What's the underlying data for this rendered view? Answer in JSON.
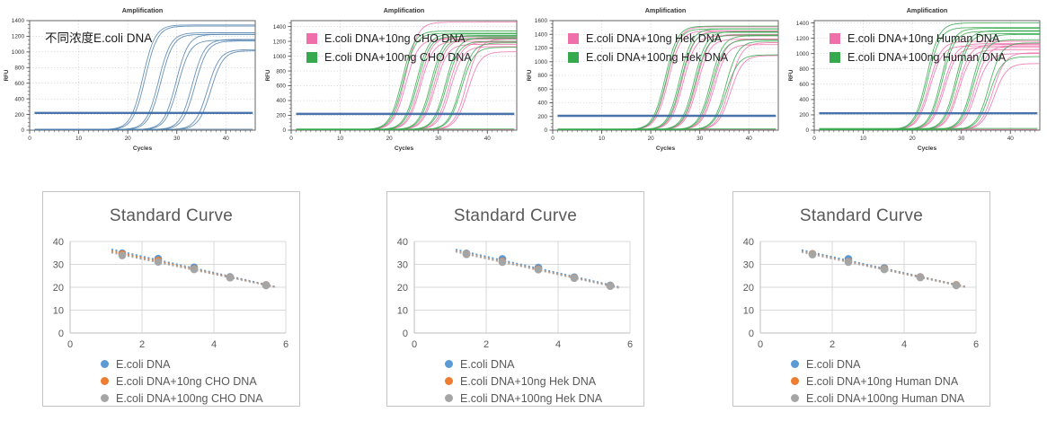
{
  "colors": {
    "amp_blue": "#4d7fae",
    "threshold_blue": "#3a69a4",
    "pink": "#ee6fa9",
    "green": "#36a84e",
    "amp_text": "#333333",
    "amp_grid": "#b9b9b9",
    "amp_axis": "#555555",
    "excel_blue": "#5B9BD5",
    "excel_orange": "#ED7D31",
    "excel_gray": "#A5A5A5",
    "std_text": "#595959",
    "std_grid": "#d9d9d9",
    "std_axis": "#bfbfbf"
  },
  "chart_data": [
    {
      "id": "amp1",
      "kind": "amplification",
      "type": "line",
      "title": "Amplification",
      "xlabel": "Cycles",
      "ylabel": "RFU",
      "xlim": [
        0,
        46
      ],
      "ylim": [
        0,
        1400
      ],
      "x_ticks": [
        0,
        10,
        20,
        30,
        40
      ],
      "y_ticks": [
        0,
        200,
        400,
        600,
        800,
        1000,
        1200,
        1400
      ],
      "threshold": 220,
      "annotation": "不同浓度E.coli DNA",
      "legend": [],
      "series": [
        {
          "c": "blue",
          "ct": 21.0,
          "p": 1345
        },
        {
          "c": "blue",
          "ct": 21.5,
          "p": 1330
        },
        {
          "c": "blue",
          "ct": 24.3,
          "p": 1245
        },
        {
          "c": "blue",
          "ct": 24.8,
          "p": 1225
        },
        {
          "c": "blue",
          "ct": 27.9,
          "p": 1225
        },
        {
          "c": "blue",
          "ct": 28.4,
          "p": 1150
        },
        {
          "c": "blue",
          "ct": 31.3,
          "p": 1160
        },
        {
          "c": "blue",
          "ct": 31.9,
          "p": 1140
        },
        {
          "c": "blue",
          "ct": 34.6,
          "p": 1030
        },
        {
          "c": "blue",
          "ct": 35.3,
          "p": 1015
        },
        {
          "c": "blue",
          "flat": 12
        }
      ]
    },
    {
      "id": "amp2",
      "kind": "amplification",
      "type": "line",
      "title": "Amplification",
      "xlabel": "Cycles",
      "ylabel": "RFU",
      "xlim": [
        0,
        46
      ],
      "ylim": [
        0,
        1480
      ],
      "x_ticks": [
        0,
        10,
        20,
        30,
        40
      ],
      "y_ticks": [
        0,
        200,
        400,
        600,
        800,
        1000,
        1200,
        1400
      ],
      "threshold": 220,
      "annotation": "",
      "legend": [
        {
          "label": "E.coli DNA+10ng CHO DNA",
          "color": "pink"
        },
        {
          "label": "E.coli DNA+100ng CHO DNA",
          "color": "green"
        }
      ],
      "series": [
        {
          "c": "pink",
          "ct": 21.1,
          "p": 1460
        },
        {
          "c": "pink",
          "ct": 21.4,
          "p": 1230
        },
        {
          "c": "pink",
          "ct": 24.2,
          "p": 1260
        },
        {
          "c": "pink",
          "ct": 24.5,
          "p": 1200
        },
        {
          "c": "pink",
          "ct": 27.2,
          "p": 1230
        },
        {
          "c": "pink",
          "ct": 27.5,
          "p": 1160
        },
        {
          "c": "pink",
          "ct": 30.3,
          "p": 1190
        },
        {
          "c": "pink",
          "ct": 30.7,
          "p": 1130
        },
        {
          "c": "pink",
          "ct": 33.8,
          "p": 1230
        },
        {
          "c": "pink",
          "ct": 34.3,
          "p": 1060
        },
        {
          "c": "pink",
          "flat": 10
        },
        {
          "c": "green",
          "ct": 20.5,
          "p": 1340
        },
        {
          "c": "green",
          "ct": 20.8,
          "p": 1310
        },
        {
          "c": "green",
          "ct": 23.5,
          "p": 1300
        },
        {
          "c": "green",
          "ct": 23.8,
          "p": 1270
        },
        {
          "c": "green",
          "ct": 26.5,
          "p": 1280
        },
        {
          "c": "green",
          "ct": 26.8,
          "p": 1240
        },
        {
          "c": "green",
          "ct": 29.5,
          "p": 1250
        },
        {
          "c": "green",
          "ct": 29.8,
          "p": 1200
        },
        {
          "c": "green",
          "ct": 32.6,
          "p": 1180
        },
        {
          "c": "green",
          "ct": 32.9,
          "p": 1120
        },
        {
          "c": "green",
          "flat": 16
        }
      ]
    },
    {
      "id": "amp3",
      "kind": "amplification",
      "type": "line",
      "title": "Amplification",
      "xlabel": "Cycles",
      "ylabel": "RFU",
      "xlim": [
        0,
        46
      ],
      "ylim": [
        0,
        1600
      ],
      "x_ticks": [
        0,
        10,
        20,
        30,
        40
      ],
      "y_ticks": [
        0,
        200,
        400,
        600,
        800,
        1000,
        1200,
        1400,
        1600
      ],
      "threshold": 210,
      "annotation": "",
      "legend": [
        {
          "label": "E.coli DNA+10ng Hek DNA",
          "color": "pink"
        },
        {
          "label": "E.coli DNA+100ng Hek DNA",
          "color": "green"
        }
      ],
      "series": [
        {
          "c": "pink",
          "ct": 21.0,
          "p": 1510
        },
        {
          "c": "pink",
          "ct": 21.3,
          "p": 1450
        },
        {
          "c": "pink",
          "ct": 24.1,
          "p": 1450
        },
        {
          "c": "pink",
          "ct": 24.4,
          "p": 1380
        },
        {
          "c": "pink",
          "ct": 27.1,
          "p": 1400
        },
        {
          "c": "pink",
          "ct": 27.4,
          "p": 1330
        },
        {
          "c": "pink",
          "ct": 30.6,
          "p": 1330
        },
        {
          "c": "pink",
          "ct": 30.9,
          "p": 1250
        },
        {
          "c": "pink",
          "ct": 34.0,
          "p": 1280
        },
        {
          "c": "pink",
          "ct": 34.4,
          "p": 1090
        },
        {
          "c": "pink",
          "flat": 12
        },
        {
          "c": "green",
          "ct": 20.6,
          "p": 1520
        },
        {
          "c": "green",
          "ct": 20.9,
          "p": 1480
        },
        {
          "c": "green",
          "ct": 23.6,
          "p": 1480
        },
        {
          "c": "green",
          "ct": 23.9,
          "p": 1430
        },
        {
          "c": "green",
          "ct": 26.6,
          "p": 1440
        },
        {
          "c": "green",
          "ct": 26.9,
          "p": 1390
        },
        {
          "c": "green",
          "ct": 30.0,
          "p": 1380
        },
        {
          "c": "green",
          "ct": 30.3,
          "p": 1320
        },
        {
          "c": "green",
          "ct": 33.2,
          "p": 1300
        },
        {
          "c": "green",
          "ct": 33.5,
          "p": 1100
        },
        {
          "c": "green",
          "flat": 18
        }
      ]
    },
    {
      "id": "amp4",
      "kind": "amplification",
      "type": "line",
      "title": "Amplification",
      "xlabel": "Cycles",
      "ylabel": "RFU",
      "xlim": [
        0,
        46
      ],
      "ylim": [
        0,
        1430
      ],
      "x_ticks": [
        0,
        10,
        20,
        30,
        40
      ],
      "y_ticks": [
        0,
        200,
        400,
        600,
        800,
        1000,
        1200,
        1400
      ],
      "threshold": 220,
      "annotation": "",
      "legend": [
        {
          "label": "E.coli DNA+10ng Human DNA",
          "color": "pink"
        },
        {
          "label": "E.coli DNA+100ng Human DNA",
          "color": "green"
        }
      ],
      "series": [
        {
          "c": "pink",
          "ct": 21.5,
          "p": 1160
        },
        {
          "c": "pink",
          "ct": 21.8,
          "p": 1100
        },
        {
          "c": "pink",
          "ct": 24.5,
          "p": 1130
        },
        {
          "c": "pink",
          "ct": 24.8,
          "p": 1080
        },
        {
          "c": "pink",
          "ct": 27.5,
          "p": 1120
        },
        {
          "c": "pink",
          "ct": 27.8,
          "p": 1050
        },
        {
          "c": "pink",
          "ct": 31.0,
          "p": 1100
        },
        {
          "c": "pink",
          "ct": 31.4,
          "p": 1000
        },
        {
          "c": "pink",
          "ct": 34.8,
          "p": 1010
        },
        {
          "c": "pink",
          "ct": 35.3,
          "p": 870
        },
        {
          "c": "pink",
          "flat": 10
        },
        {
          "c": "green",
          "ct": 20.8,
          "p": 1400
        },
        {
          "c": "green",
          "ct": 21.1,
          "p": 1340
        },
        {
          "c": "green",
          "ct": 23.8,
          "p": 1330
        },
        {
          "c": "green",
          "ct": 24.1,
          "p": 1290
        },
        {
          "c": "green",
          "ct": 26.8,
          "p": 1300
        },
        {
          "c": "green",
          "ct": 27.1,
          "p": 1260
        },
        {
          "c": "green",
          "ct": 30.3,
          "p": 1250
        },
        {
          "c": "green",
          "ct": 30.6,
          "p": 1180
        },
        {
          "c": "green",
          "ct": 33.8,
          "p": 1140
        },
        {
          "c": "green",
          "ct": 34.2,
          "p": 960
        },
        {
          "c": "green",
          "flat": 22
        }
      ]
    },
    {
      "id": "std1",
      "kind": "standard",
      "type": "scatter",
      "title": "Standard Curve",
      "xlim": [
        0,
        6
      ],
      "ylim": [
        0,
        40
      ],
      "x_ticks": [
        0,
        2,
        4,
        6
      ],
      "y_ticks": [
        0,
        10,
        20,
        30,
        40
      ],
      "x": [
        1.45,
        2.45,
        3.45,
        4.45,
        5.45
      ],
      "series": [
        {
          "name": "E.coli DNA",
          "color": "excel_blue",
          "values": [
            34.9,
            32.5,
            28.7,
            24.5,
            21.0
          ]
        },
        {
          "name": "E.coli DNA+10ng CHO DNA",
          "color": "excel_orange",
          "values": [
            34.5,
            31.7,
            28.0,
            24.3,
            20.9
          ]
        },
        {
          "name": "E.coli DNA+100ng CHO DNA",
          "color": "excel_gray",
          "values": [
            33.9,
            31.1,
            27.8,
            24.2,
            20.8
          ]
        }
      ]
    },
    {
      "id": "std2",
      "kind": "standard",
      "type": "scatter",
      "title": "Standard Curve",
      "xlim": [
        0,
        6
      ],
      "ylim": [
        0,
        40
      ],
      "x_ticks": [
        0,
        2,
        4,
        6
      ],
      "y_ticks": [
        0,
        10,
        20,
        30,
        40
      ],
      "x": [
        1.45,
        2.45,
        3.45,
        4.45,
        5.45
      ],
      "series": [
        {
          "name": "E.coli DNA",
          "color": "excel_blue",
          "values": [
            34.8,
            32.4,
            28.6,
            24.4,
            20.8
          ]
        },
        {
          "name": "E.coli DNA+10ng Hek DNA",
          "color": "excel_orange",
          "values": [
            34.5,
            31.3,
            27.9,
            24.1,
            20.6
          ]
        },
        {
          "name": "E.coli DNA+100ng Hek DNA",
          "color": "excel_gray",
          "values": [
            34.4,
            31.0,
            27.7,
            24.0,
            20.5
          ]
        }
      ]
    },
    {
      "id": "std3",
      "kind": "standard",
      "type": "scatter",
      "title": "Standard Curve",
      "xlim": [
        0,
        6
      ],
      "ylim": [
        0,
        40
      ],
      "x_ticks": [
        0,
        2,
        4,
        6
      ],
      "y_ticks": [
        0,
        10,
        20,
        30,
        40
      ],
      "x": [
        1.45,
        2.45,
        3.45,
        4.45,
        5.45
      ],
      "series": [
        {
          "name": "E.coli DNA",
          "color": "excel_blue",
          "values": [
            34.6,
            32.4,
            28.4,
            24.5,
            21.0
          ]
        },
        {
          "name": "E.coli DNA+10ng Human DNA",
          "color": "excel_orange",
          "values": [
            34.5,
            31.2,
            28.0,
            24.4,
            21.0
          ]
        },
        {
          "name": "E.coli DNA+100ng Human DNA",
          "color": "excel_gray",
          "values": [
            34.3,
            31.0,
            27.8,
            24.3,
            20.8
          ]
        }
      ]
    }
  ],
  "layout_note": "4 qPCR amplification plots (top) and 3 Excel standard-curve cards (bottom)"
}
